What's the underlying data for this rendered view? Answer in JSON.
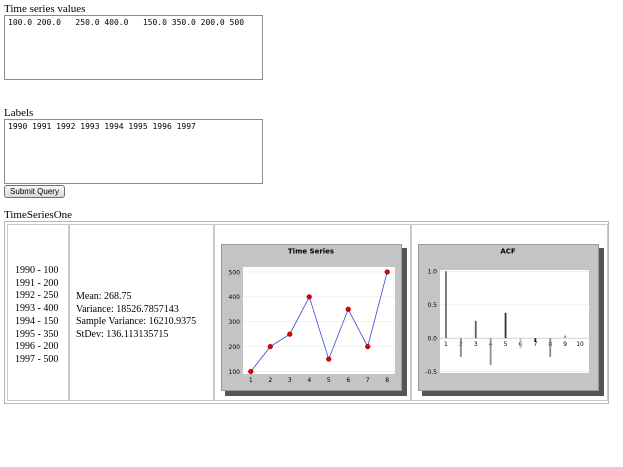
{
  "form": {
    "values_label": "Time series values",
    "values_text": "100.0 200.0   250.0 400.0   150.0 350.0 200.0 500",
    "labels_label": "Labels",
    "labels_text": "1990 1991 1992 1993 1994 1995 1996 1997",
    "submit_label": "Submit Query"
  },
  "result": {
    "heading": "TimeSeriesOne",
    "rows": [
      "1990 - 100",
      "1991 - 200",
      "1992 - 250",
      "1993 - 400",
      "1994 - 150",
      "1995 - 350",
      "1996 - 200",
      "1997 - 500"
    ],
    "stats": {
      "mean": "Mean: 268.75",
      "variance": "Variance: 18526.7857143",
      "sample_variance": "Sample Variance: 16210.9375",
      "stdev": "StDev: 136.113135715"
    }
  },
  "chart_data": [
    {
      "type": "line",
      "title": "Time Series",
      "x": [
        1,
        2,
        3,
        4,
        5,
        6,
        7,
        8
      ],
      "series": [
        {
          "values": [
            100,
            200,
            250,
            400,
            150,
            350,
            200,
            500
          ]
        }
      ],
      "xticks": [
        1,
        2,
        3,
        4,
        5,
        6,
        7,
        8
      ],
      "yticks": [
        100,
        200,
        300,
        400,
        500
      ],
      "xlim": [
        0.6,
        8.4
      ],
      "ylim": [
        90,
        520
      ],
      "grid": true,
      "line_color": "#3a4ad0",
      "marker_color": "#dd0000"
    },
    {
      "type": "bar",
      "title": "ACF",
      "x": [
        1,
        2,
        3,
        4,
        5,
        6,
        7,
        8,
        9,
        10
      ],
      "xticks": [
        1,
        2,
        3,
        4,
        5,
        6,
        7,
        8,
        9,
        10
      ],
      "yticks": [
        "1.0",
        "0.5",
        "0.0",
        "-0.5"
      ],
      "ytick_values": [
        1.0,
        0.5,
        0.0,
        -0.5
      ],
      "values": [
        1.0,
        -0.28,
        0.26,
        -0.4,
        0.38,
        -0.15,
        -0.05,
        -0.28,
        0.04,
        0.0
      ],
      "xlim": [
        0.6,
        10.6
      ],
      "ylim": [
        -0.52,
        1.02
      ],
      "grid": true,
      "bar_colors": [
        "#707070",
        "#888888",
        "#606060",
        "#909090",
        "#333333",
        "#bbbbbb",
        "#222222",
        "#888888",
        "#999999",
        "#cccccc"
      ]
    }
  ]
}
